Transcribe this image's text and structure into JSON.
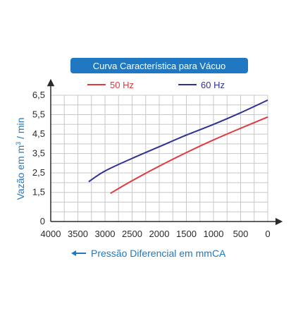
{
  "chart_data": {
    "type": "line",
    "title": "Curva Característica para Vácuo",
    "xlabel": "Pressão Diferencial em mmCA",
    "ylabel": "Vazão em m³ / min",
    "ylabel_parts": {
      "before": "Vazão em m",
      "sup": "3",
      "after": " / min"
    },
    "xlim": [
      4000,
      0
    ],
    "ylim": [
      0,
      6.5
    ],
    "x_reversed": true,
    "grid": true,
    "x_ticks": [
      4000,
      3500,
      3000,
      2500,
      2000,
      1500,
      1000,
      500,
      0
    ],
    "y_ticks": [
      0,
      1.5,
      2.5,
      3.5,
      4.5,
      5.5,
      6.5
    ],
    "x_tick_labels": [
      "4000",
      "3500",
      "3000",
      "2500",
      "2000",
      "1500",
      "1000",
      "500",
      "0"
    ],
    "y_tick_labels": [
      "0",
      "1,5",
      "2,5",
      "3,5",
      "4,5",
      "5,5",
      "6,5"
    ],
    "legend_position": "top",
    "series": [
      {
        "name": "50 Hz",
        "color": "#e03a3e",
        "x": [
          2900,
          2500,
          2000,
          1500,
          1000,
          500,
          0
        ],
        "y": [
          1.45,
          2.1,
          2.85,
          3.55,
          4.2,
          4.8,
          5.38
        ]
      },
      {
        "name": "60 Hz",
        "color": "#2e3192",
        "x": [
          3300,
          3000,
          2500,
          2000,
          1500,
          1000,
          500,
          0
        ],
        "y": [
          2.05,
          2.6,
          3.25,
          3.85,
          4.45,
          5.0,
          5.6,
          6.25
        ]
      }
    ]
  },
  "colors": {
    "title_bg": "#1f78c1",
    "axis_label": "#1f78c1",
    "grid": "#c8c8c8",
    "axis": "#2b2b2b"
  }
}
